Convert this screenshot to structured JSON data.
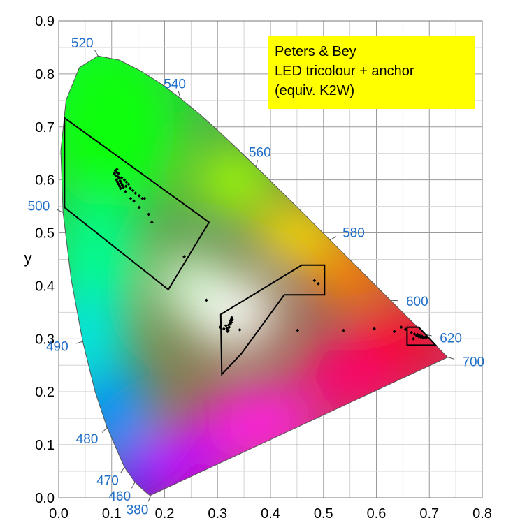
{
  "chart_data": {
    "type": "scatter",
    "xlabel": "x",
    "ylabel": "y",
    "xlim": [
      0,
      0.8
    ],
    "ylim": [
      0,
      0.9
    ],
    "x_ticks": [
      "0.0",
      "0.1",
      "0.2",
      "0.3",
      "0.4",
      "0.5",
      "0.6",
      "0.7",
      "0.8"
    ],
    "y_ticks": [
      "0.0",
      "0.1",
      "0.2",
      "0.3",
      "0.4",
      "0.5",
      "0.6",
      "0.7",
      "0.8",
      "0.9"
    ],
    "grid": true,
    "annotation_box": {
      "lines": [
        "Peters & Bey",
        "LED tricolour + anchor",
        "(equiv. K2W)"
      ],
      "background": "#ffff00"
    },
    "spectral_locus_labels": [
      {
        "nm": "380",
        "x": 0.1741,
        "y": 0.005
      },
      {
        "nm": "460",
        "x": 0.144,
        "y": 0.0297
      },
      {
        "nm": "470",
        "x": 0.1241,
        "y": 0.0578
      },
      {
        "nm": "480",
        "x": 0.0913,
        "y": 0.1327
      },
      {
        "nm": "490",
        "x": 0.0454,
        "y": 0.295
      },
      {
        "nm": "500",
        "x": 0.0082,
        "y": 0.5384
      },
      {
        "nm": "520",
        "x": 0.0743,
        "y": 0.8338
      },
      {
        "nm": "540",
        "x": 0.2296,
        "y": 0.7543
      },
      {
        "nm": "560",
        "x": 0.3731,
        "y": 0.6245
      },
      {
        "nm": "580",
        "x": 0.5125,
        "y": 0.4866
      },
      {
        "nm": "600",
        "x": 0.627,
        "y": 0.3725
      },
      {
        "nm": "620",
        "x": 0.6915,
        "y": 0.3083
      },
      {
        "nm": "700",
        "x": 0.7347,
        "y": 0.2653
      }
    ],
    "regions": [
      {
        "name": "green",
        "points": [
          [
            0.011,
            0.717
          ],
          [
            0.284,
            0.52
          ],
          [
            0.207,
            0.393
          ],
          [
            0.011,
            0.548
          ]
        ]
      },
      {
        "name": "white",
        "points": [
          [
            0.306,
            0.346
          ],
          [
            0.459,
            0.439
          ],
          [
            0.502,
            0.439
          ],
          [
            0.502,
            0.383
          ],
          [
            0.426,
            0.383
          ],
          [
            0.345,
            0.272
          ],
          [
            0.308,
            0.233
          ]
        ]
      },
      {
        "name": "red",
        "points": [
          [
            0.658,
            0.322
          ],
          [
            0.68,
            0.322
          ],
          [
            0.712,
            0.288
          ],
          [
            0.658,
            0.288
          ]
        ]
      }
    ],
    "points": [
      [
        0.107,
        0.617
      ],
      [
        0.11,
        0.614
      ],
      [
        0.113,
        0.612
      ],
      [
        0.108,
        0.608
      ],
      [
        0.112,
        0.606
      ],
      [
        0.114,
        0.603
      ],
      [
        0.109,
        0.6
      ],
      [
        0.116,
        0.598
      ],
      [
        0.111,
        0.596
      ],
      [
        0.118,
        0.594
      ],
      [
        0.113,
        0.592
      ],
      [
        0.12,
        0.59
      ],
      [
        0.115,
        0.588
      ],
      [
        0.122,
        0.586
      ],
      [
        0.117,
        0.584
      ],
      [
        0.124,
        0.6
      ],
      [
        0.128,
        0.596
      ],
      [
        0.132,
        0.592
      ],
      [
        0.127,
        0.588
      ],
      [
        0.135,
        0.584
      ],
      [
        0.14,
        0.58
      ],
      [
        0.145,
        0.575
      ],
      [
        0.152,
        0.57
      ],
      [
        0.158,
        0.565
      ],
      [
        0.136,
        0.565
      ],
      [
        0.142,
        0.56
      ],
      [
        0.152,
        0.548
      ],
      [
        0.17,
        0.535
      ],
      [
        0.162,
        0.565
      ],
      [
        0.176,
        0.52
      ],
      [
        0.11,
        0.62
      ],
      [
        0.105,
        0.612
      ],
      [
        0.119,
        0.604
      ],
      [
        0.126,
        0.578
      ],
      [
        0.237,
        0.455
      ],
      [
        0.279,
        0.373
      ],
      [
        0.305,
        0.322
      ],
      [
        0.312,
        0.319
      ],
      [
        0.318,
        0.32
      ],
      [
        0.321,
        0.326
      ],
      [
        0.323,
        0.33
      ],
      [
        0.325,
        0.334
      ],
      [
        0.326,
        0.337
      ],
      [
        0.327,
        0.34
      ],
      [
        0.328,
        0.336
      ],
      [
        0.32,
        0.316
      ],
      [
        0.322,
        0.322
      ],
      [
        0.324,
        0.328
      ],
      [
        0.316,
        0.325
      ],
      [
        0.319,
        0.314
      ],
      [
        0.326,
        0.331
      ],
      [
        0.342,
        0.317
      ],
      [
        0.483,
        0.41
      ],
      [
        0.49,
        0.404
      ],
      [
        0.451,
        0.316
      ],
      [
        0.538,
        0.316
      ],
      [
        0.596,
        0.319
      ],
      [
        0.634,
        0.314
      ],
      [
        0.647,
        0.322
      ],
      [
        0.655,
        0.318
      ],
      [
        0.666,
        0.312
      ],
      [
        0.672,
        0.309
      ],
      [
        0.676,
        0.306
      ],
      [
        0.68,
        0.304
      ],
      [
        0.684,
        0.303
      ],
      [
        0.688,
        0.302
      ],
      [
        0.692,
        0.303
      ],
      [
        0.682,
        0.306
      ],
      [
        0.678,
        0.308
      ],
      [
        0.686,
        0.305
      ],
      [
        0.67,
        0.3
      ],
      [
        0.694,
        0.302
      ]
    ]
  }
}
